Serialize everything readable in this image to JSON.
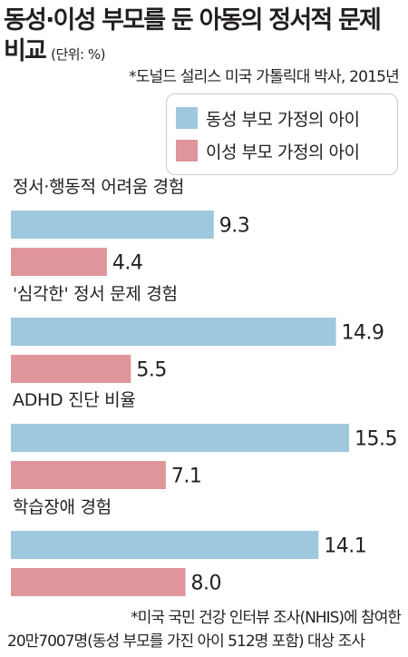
{
  "title_line1": "동성·이성 부모를 둔 아동의 정서적 문제",
  "title_line2": "비교",
  "unit": "(단위: %)",
  "source": "*도널드 설리스 미국 가톨릭대 박사, 2015년",
  "footnote_line1": "*미국 국민 건강 인터뷰 조사(NHIS)에 참여한",
  "footnote_line2": "20만7007명(동성 부모를 가진 아이 512명 포함) 대상 조사",
  "chart_data": {
    "type": "bar",
    "orientation": "horizontal",
    "categories": [
      "정서·행동적 어려움 경험",
      "'심각한' 정서 문제 경험",
      "ADHD 진단 비율",
      "학습장애 경험"
    ],
    "series": [
      {
        "name": "동성 부모 가정의 아이",
        "color": "#9ec8de",
        "values": [
          9.3,
          14.9,
          15.5,
          14.1
        ]
      },
      {
        "name": "이성 부모 가정의 아이",
        "color": "#df959b",
        "values": [
          4.4,
          5.5,
          7.1,
          8.0
        ]
      }
    ],
    "value_labels": [
      [
        "9.3",
        "4.4"
      ],
      [
        "14.9",
        "5.5"
      ],
      [
        "15.5",
        "7.1"
      ],
      [
        "14.1",
        "8.0"
      ]
    ],
    "xlim": [
      0,
      15.5
    ],
    "legend_position": "top-right",
    "grid": false
  }
}
